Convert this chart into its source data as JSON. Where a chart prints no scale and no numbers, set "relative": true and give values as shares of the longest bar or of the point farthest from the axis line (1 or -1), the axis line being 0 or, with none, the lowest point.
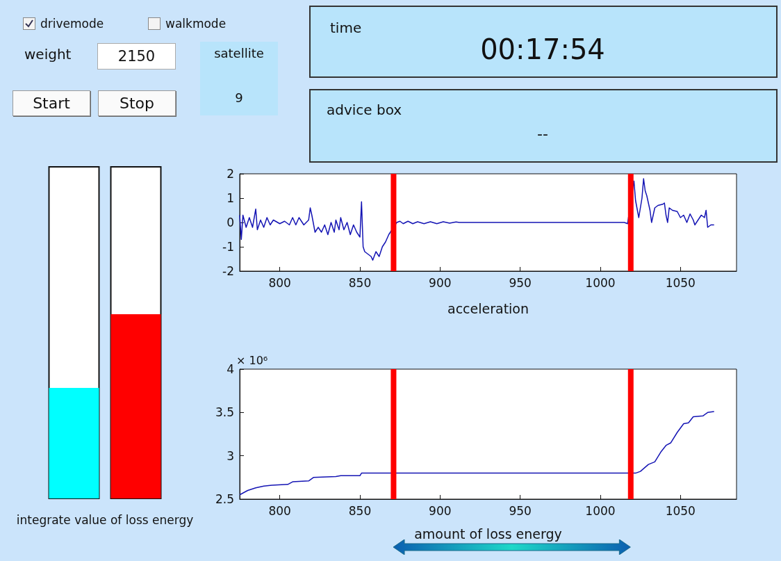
{
  "chart_data": [
    {
      "type": "other",
      "annotations": [
        "drivemode",
        "walkmode",
        "weight",
        "2150",
        "satellite",
        "9",
        "Start",
        "Stop",
        "time",
        "00:17:54",
        "advice box",
        "--"
      ]
    },
    {
      "type": "bar",
      "relative": true,
      "categories": [
        null,
        null
      ],
      "values": [
        0.6,
        1
      ],
      "colors": [
        "#00ffff",
        "#ff0000"
      ],
      "xlabel": "integrate value of loss energy"
    },
    {
      "type": "line",
      "xlabel": "acceleration",
      "color": "#1414b4",
      "grid": false,
      "xlim": [
        775,
        1085
      ],
      "ylim": [
        -2,
        2
      ],
      "xticks": [
        800,
        850,
        900,
        950,
        1000,
        1050
      ],
      "yticks": [
        -2,
        -1,
        0,
        1,
        2
      ],
      "ref_lines": [
        {
          "axis": "x",
          "value": 871,
          "color": "#ff0000"
        },
        {
          "axis": "x",
          "value": 1019,
          "color": "#ff0000"
        }
      ],
      "x": [
        775,
        776,
        777,
        779,
        781,
        783,
        785,
        786,
        788,
        790,
        792,
        794,
        796,
        800,
        803,
        806,
        808,
        810,
        812,
        815,
        818,
        819,
        820,
        822,
        824,
        826,
        828,
        830,
        832,
        834,
        835,
        837,
        838,
        840,
        842,
        844,
        846,
        848,
        850,
        851,
        852,
        853,
        855,
        857,
        858,
        860,
        862,
        864,
        866,
        868,
        870,
        873,
        875,
        877,
        880,
        883,
        886,
        890,
        894,
        898,
        902,
        906,
        910,
        912,
        1015,
        1017,
        1021,
        1022,
        1024,
        1026,
        1027,
        1028,
        1029,
        1031,
        1032,
        1034,
        1036,
        1039,
        1040,
        1041,
        1042,
        1043,
        1045,
        1048,
        1050,
        1052,
        1054,
        1056,
        1058,
        1059,
        1061,
        1063,
        1065,
        1066,
        1067,
        1069,
        1071
      ],
      "values": [
        0.3,
        -0.7,
        0.3,
        -0.2,
        0.2,
        -0.2,
        0.55,
        -0.3,
        0.1,
        -0.2,
        0.2,
        -0.1,
        0.1,
        -0.05,
        0.05,
        -0.1,
        0.2,
        -0.1,
        0.2,
        -0.1,
        0.1,
        0.6,
        0.3,
        -0.4,
        -0.2,
        -0.4,
        -0.1,
        -0.5,
        0,
        -0.4,
        0.1,
        -0.3,
        0.2,
        -0.3,
        0,
        -0.5,
        -0.1,
        -0.4,
        -0.6,
        0.85,
        -1,
        -1.2,
        -1.3,
        -1.4,
        -1.55,
        -1.2,
        -1.4,
        -1,
        -0.8,
        -0.5,
        -0.3,
        0,
        0.05,
        -0.05,
        0.05,
        -0.05,
        0.03,
        -0.05,
        0.03,
        -0.05,
        0.03,
        -0.03,
        0.02,
        0,
        0,
        -0.05,
        1.7,
        0.9,
        0.2,
        1,
        1.8,
        1.3,
        1.1,
        0.5,
        0,
        0.6,
        0.7,
        0.75,
        0.8,
        0.3,
        0,
        0.6,
        0.5,
        0.45,
        0.2,
        0.3,
        0,
        0.35,
        0.1,
        -0.1,
        0.1,
        0.3,
        0.2,
        0.5,
        -0.2,
        -0.1,
        -0.1
      ]
    },
    {
      "type": "line",
      "xlabel": "amount of loss energy",
      "annotations": [
        "× 10⁶"
      ],
      "color": "#1414b4",
      "grid": false,
      "xlim": [
        775,
        1085
      ],
      "ylim": [
        2.5,
        4
      ],
      "xticks": [
        800,
        850,
        900,
        950,
        1000,
        1050
      ],
      "yticks": [
        2.5,
        3,
        3.5,
        4
      ],
      "ref_lines": [
        {
          "axis": "x",
          "value": 871,
          "color": "#ff0000"
        },
        {
          "axis": "x",
          "value": 1019,
          "color": "#ff0000"
        }
      ],
      "x": [
        775,
        780,
        785,
        790,
        795,
        805,
        808,
        818,
        821,
        835,
        838,
        850,
        851,
        1022,
        1025,
        1030,
        1034,
        1038,
        1041,
        1044,
        1048,
        1052,
        1055,
        1058,
        1064,
        1067,
        1071
      ],
      "values": [
        2.55,
        2.6,
        2.63,
        2.65,
        2.66,
        2.67,
        2.7,
        2.71,
        2.75,
        2.76,
        2.77,
        2.77,
        2.8,
        2.8,
        2.82,
        2.9,
        2.93,
        3.05,
        3.12,
        3.15,
        3.27,
        3.37,
        3.38,
        3.45,
        3.46,
        3.5,
        3.51
      ]
    }
  ]
}
